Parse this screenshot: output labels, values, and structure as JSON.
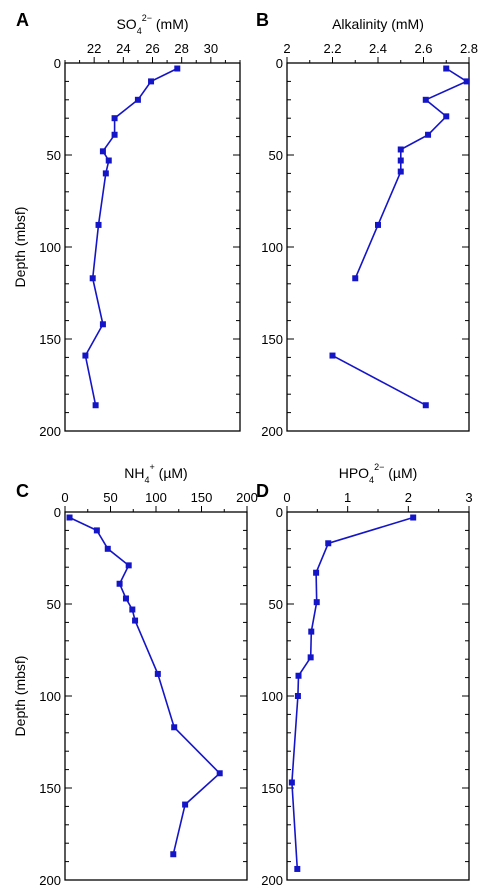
{
  "figure": {
    "ylabel": "Depth (mbsf)"
  },
  "colors": {
    "series": "#1515c8"
  },
  "chart_data": [
    {
      "panel": "A",
      "type": "line",
      "title_main": "SO",
      "title_sub": "4",
      "title_sup": "2−",
      "title_unit": " (mM)",
      "xlim": [
        20,
        32
      ],
      "xticks": [
        22,
        24,
        26,
        28,
        30
      ],
      "ylim": [
        0,
        200
      ],
      "yticks": [
        0,
        50,
        100,
        150,
        200
      ],
      "y_reversed": true,
      "ylabel": "Depth (mbsf)",
      "grid": false,
      "points": [
        {
          "x": 27.7,
          "y": 3
        },
        {
          "x": 25.9,
          "y": 10
        },
        {
          "x": 25.0,
          "y": 20
        },
        {
          "x": 23.4,
          "y": 30
        },
        {
          "x": 23.4,
          "y": 39
        },
        {
          "x": 22.6,
          "y": 48
        },
        {
          "x": 23.0,
          "y": 53
        },
        {
          "x": 22.8,
          "y": 60
        },
        {
          "x": 22.3,
          "y": 88
        },
        {
          "x": 21.9,
          "y": 117
        },
        {
          "x": 22.6,
          "y": 142
        },
        {
          "x": 21.4,
          "y": 159
        },
        {
          "x": 22.1,
          "y": 186
        }
      ]
    },
    {
      "panel": "B",
      "type": "line",
      "title_main": "Alkalinity",
      "title_sub": "",
      "title_sup": "",
      "title_unit": " (mM)",
      "xlim": [
        2.0,
        2.8
      ],
      "xticks": [
        2,
        2.2,
        2.4,
        2.6,
        2.8
      ],
      "ylim": [
        0,
        200
      ],
      "yticks": [
        0,
        50,
        100,
        150,
        200
      ],
      "y_reversed": true,
      "grid": false,
      "points": [
        {
          "x": 2.7,
          "y": 3
        },
        {
          "x": 2.79,
          "y": 10
        },
        {
          "x": 2.61,
          "y": 20
        },
        {
          "x": 2.7,
          "y": 29
        },
        {
          "x": 2.62,
          "y": 39
        },
        {
          "x": 2.5,
          "y": 47
        },
        {
          "x": 2.5,
          "y": 53
        },
        {
          "x": 2.5,
          "y": 59
        },
        {
          "x": 2.4,
          "y": 88
        },
        {
          "x": 2.3,
          "y": 117
        },
        {
          "x": 2.2,
          "y": 159
        },
        {
          "x": 2.61,
          "y": 186
        }
      ],
      "gaps_after_index": [
        9
      ]
    },
    {
      "panel": "C",
      "type": "line",
      "title_main": "NH",
      "title_sub": "4",
      "title_sup": "+",
      "title_unit": " (µM)",
      "xlim": [
        0,
        200
      ],
      "xticks": [
        0,
        50,
        100,
        150,
        200
      ],
      "ylim": [
        0,
        200
      ],
      "yticks": [
        0,
        50,
        100,
        150,
        200
      ],
      "y_reversed": true,
      "ylabel": "Depth (mbsf)",
      "grid": false,
      "points": [
        {
          "x": 5,
          "y": 3
        },
        {
          "x": 35,
          "y": 10
        },
        {
          "x": 47,
          "y": 20
        },
        {
          "x": 70,
          "y": 29
        },
        {
          "x": 60,
          "y": 39
        },
        {
          "x": 67,
          "y": 47
        },
        {
          "x": 74,
          "y": 53
        },
        {
          "x": 77,
          "y": 59
        },
        {
          "x": 102,
          "y": 88
        },
        {
          "x": 120,
          "y": 117
        },
        {
          "x": 170,
          "y": 142
        },
        {
          "x": 132,
          "y": 159
        },
        {
          "x": 119,
          "y": 186
        }
      ]
    },
    {
      "panel": "D",
      "type": "line",
      "title_main": "HPO",
      "title_sub": "4",
      "title_sup": "2−",
      "title_unit": " (µM)",
      "xlim": [
        0,
        3
      ],
      "xticks": [
        0,
        1,
        2,
        3
      ],
      "ylim": [
        0,
        200
      ],
      "yticks": [
        0,
        50,
        100,
        150,
        200
      ],
      "y_reversed": true,
      "grid": false,
      "points": [
        {
          "x": 2.08,
          "y": 3
        },
        {
          "x": 0.68,
          "y": 17
        },
        {
          "x": 0.48,
          "y": 33
        },
        {
          "x": 0.49,
          "y": 49
        },
        {
          "x": 0.4,
          "y": 65
        },
        {
          "x": 0.39,
          "y": 79
        },
        {
          "x": 0.19,
          "y": 89
        },
        {
          "x": 0.18,
          "y": 100
        },
        {
          "x": 0.08,
          "y": 147
        },
        {
          "x": 0.17,
          "y": 194
        }
      ]
    }
  ]
}
